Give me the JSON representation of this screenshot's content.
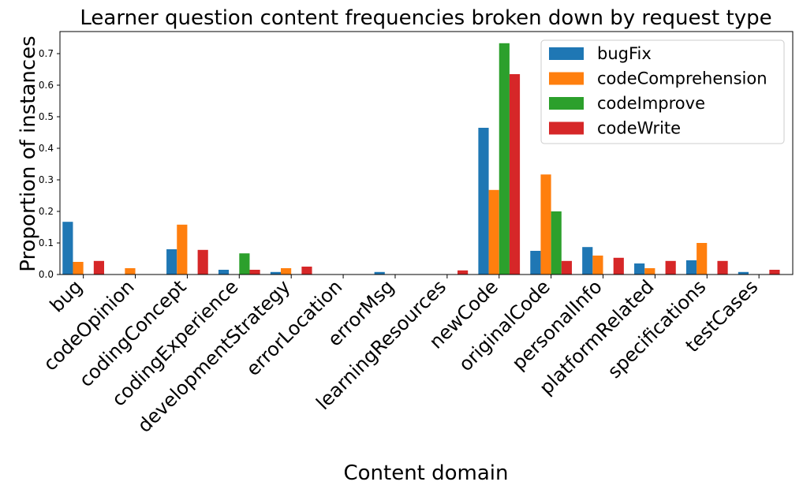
{
  "chart_data": {
    "type": "bar",
    "title": "Learner question content frequencies broken down by request type",
    "xlabel": "Content domain",
    "ylabel": "Proportion of instances",
    "ylim": [
      0,
      0.77
    ],
    "yticks": [
      0.0,
      0.1,
      0.2,
      0.3,
      0.4,
      0.5,
      0.6,
      0.7
    ],
    "ytick_labels": [
      "0.0",
      "0.1",
      "0.2",
      "0.3",
      "0.4",
      "0.5",
      "0.6",
      "0.7"
    ],
    "grid": false,
    "legend_position": "top-right",
    "categories": [
      "bug",
      "codeOpinion",
      "codingConcept",
      "codingExperience",
      "developmentStrategy",
      "errorLocation",
      "errorMsg",
      "learningResources",
      "newCode",
      "originalCode",
      "personalInfo",
      "platformRelated",
      "specifications",
      "testCases"
    ],
    "series": [
      {
        "name": "bugFix",
        "color": "#1f77b4",
        "values": [
          0.167,
          0.0,
          0.08,
          0.015,
          0.008,
          0.0,
          0.008,
          0.0,
          0.465,
          0.075,
          0.087,
          0.035,
          0.045,
          0.008
        ]
      },
      {
        "name": "codeComprehension",
        "color": "#ff7f0e",
        "values": [
          0.04,
          0.02,
          0.158,
          0.0,
          0.02,
          0.0,
          0.0,
          0.0,
          0.268,
          0.317,
          0.06,
          0.02,
          0.1,
          0.0
        ]
      },
      {
        "name": "codeImprove",
        "color": "#2ca02c",
        "values": [
          0.0,
          0.0,
          0.0,
          0.067,
          0.0,
          0.0,
          0.0,
          0.0,
          0.733,
          0.2,
          0.0,
          0.0,
          0.0,
          0.0
        ]
      },
      {
        "name": "codeWrite",
        "color": "#d62728",
        "values": [
          0.043,
          0.0,
          0.078,
          0.015,
          0.025,
          0.0,
          0.0,
          0.013,
          0.635,
          0.043,
          0.053,
          0.043,
          0.043,
          0.015
        ]
      }
    ]
  }
}
